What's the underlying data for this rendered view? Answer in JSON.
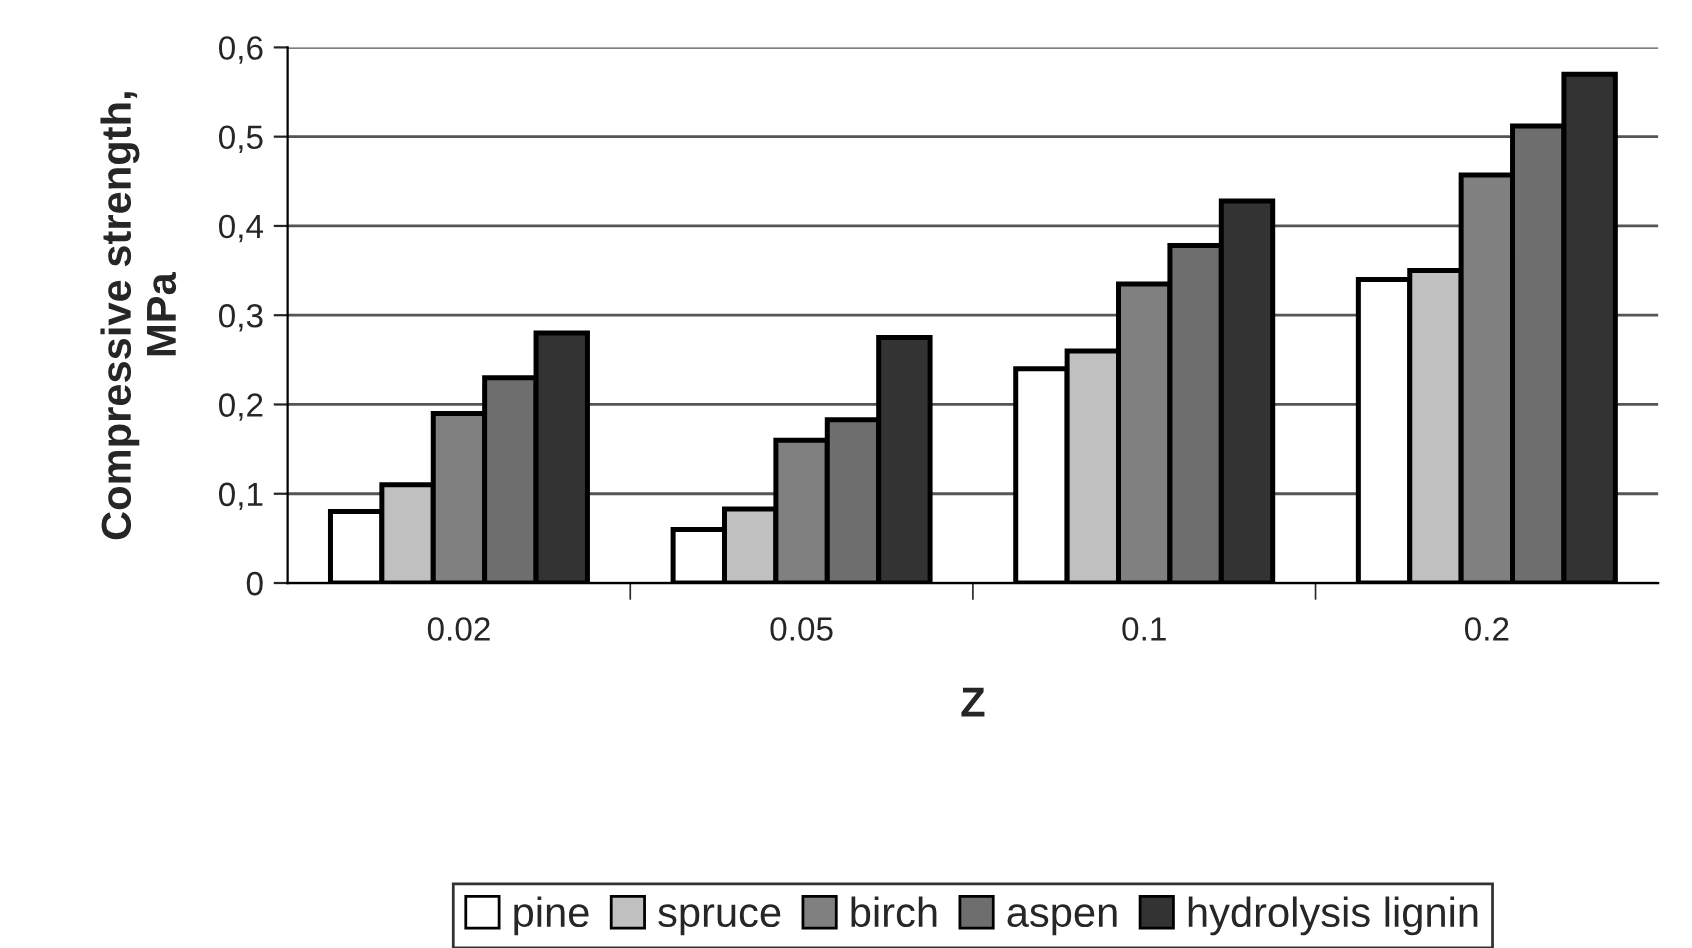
{
  "chart_data": {
    "type": "bar",
    "xlabel": "Z",
    "ylabel": "Compressive strength,\nMPa",
    "categories": [
      "0.02",
      "0.05",
      "0.1",
      "0.2"
    ],
    "series": [
      {
        "name": "pine",
        "color": "#ffffff",
        "values": [
          0.08,
          0.06,
          0.24,
          0.34
        ]
      },
      {
        "name": "spruce",
        "color": "#c0c0c0",
        "values": [
          0.11,
          0.083,
          0.26,
          0.35
        ]
      },
      {
        "name": "birch",
        "color": "#808080",
        "values": [
          0.19,
          0.16,
          0.335,
          0.457
        ]
      },
      {
        "name": "aspen",
        "color": "#6e6e6e",
        "values": [
          0.23,
          0.183,
          0.378,
          0.512
        ]
      },
      {
        "name": "hydrolysis lignin",
        "color": "#333333",
        "values": [
          0.28,
          0.275,
          0.428,
          0.57
        ]
      }
    ],
    "ylim": [
      0,
      0.6
    ],
    "yticks": [
      0,
      {
        "value": 0.1,
        "label": "0,1"
      },
      {
        "value": 0.2,
        "label": "0,2"
      },
      {
        "value": 0.3,
        "label": "0,3"
      },
      {
        "value": 0.4,
        "label": "0,4"
      },
      {
        "value": 0.5,
        "label": "0,5"
      },
      {
        "value": 0.6,
        "label": "0,6"
      }
    ],
    "grid": "y",
    "legend": "bottom"
  }
}
